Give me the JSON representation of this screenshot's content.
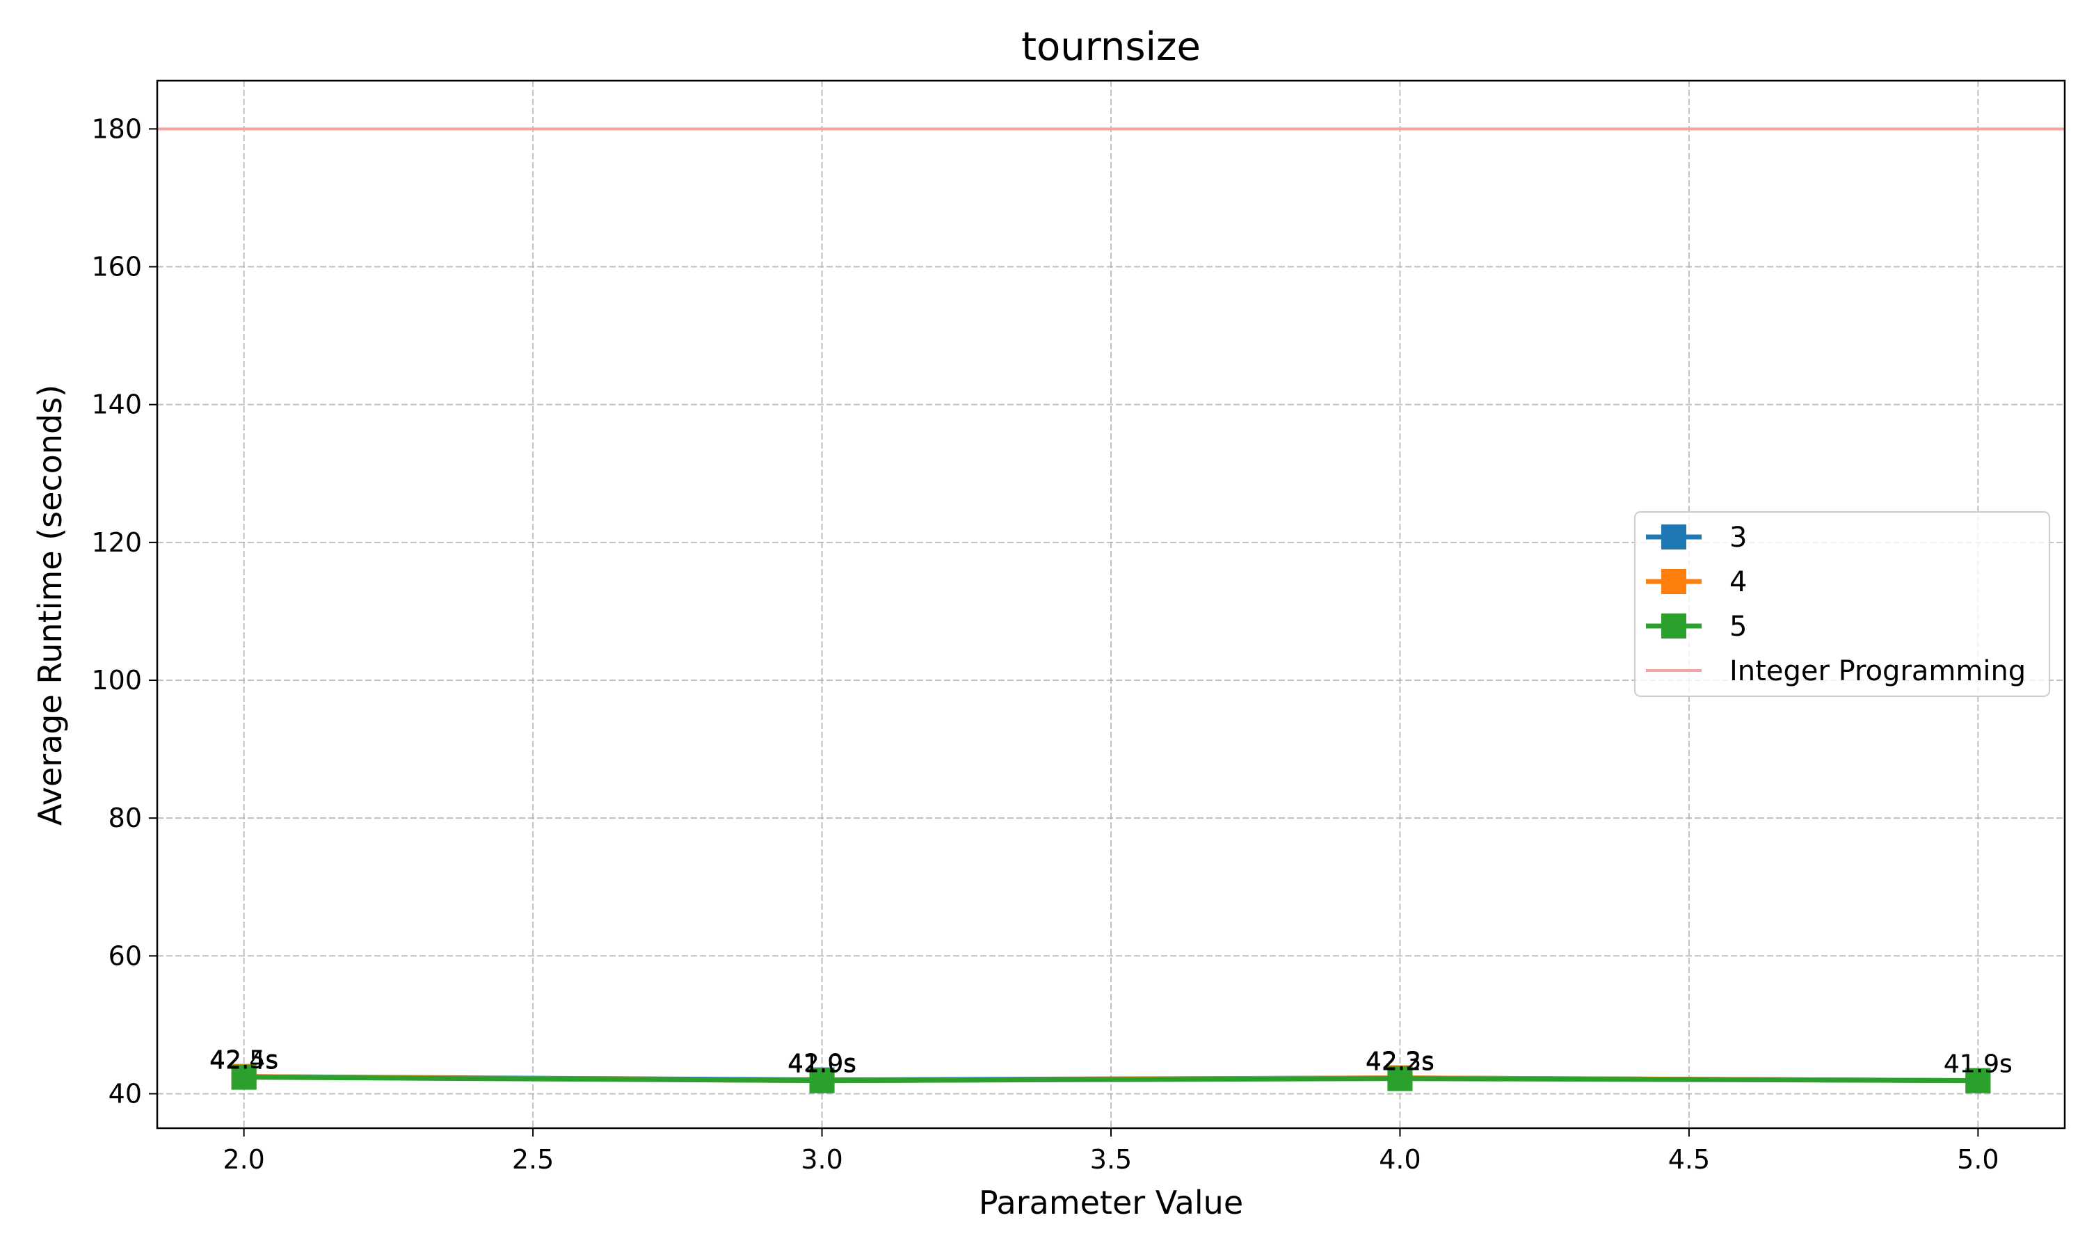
{
  "chart_data": {
    "type": "line",
    "title": "tournsize",
    "xlabel": "Parameter Value",
    "ylabel": "Average Runtime (seconds)",
    "xlim": [
      1.85,
      5.15
    ],
    "ylim": [
      35,
      187
    ],
    "xticks": [
      2.0,
      2.5,
      3.0,
      3.5,
      4.0,
      4.5,
      5.0
    ],
    "xtick_labels": [
      "2.0",
      "2.5",
      "3.0",
      "3.5",
      "4.0",
      "4.5",
      "5.0"
    ],
    "yticks": [
      40,
      60,
      80,
      100,
      120,
      140,
      160,
      180
    ],
    "ytick_labels": [
      "40",
      "60",
      "80",
      "100",
      "120",
      "140",
      "160",
      "180"
    ],
    "grid": true,
    "legend_position": "center-right",
    "x": [
      2.0,
      3.0,
      4.0,
      5.0
    ],
    "series": [
      {
        "name": "3",
        "color": "#1f77b4",
        "marker": "square",
        "values": [
          42.5,
          42.0,
          42.3,
          41.9
        ],
        "labels": [
          "42.5s",
          "42.0s",
          "42.3s",
          "41.9s"
        ]
      },
      {
        "name": "4",
        "color": "#ff7f0e",
        "marker": "square",
        "values": [
          42.5,
          41.9,
          42.3,
          41.9
        ],
        "labels": [
          "42.5s",
          "41.9s",
          "42.3s",
          "41.9s"
        ]
      },
      {
        "name": "5",
        "color": "#2ca02c",
        "marker": "square",
        "values": [
          42.4,
          41.9,
          42.2,
          41.9
        ],
        "labels": [
          "42.4s",
          "41.9s",
          "42.2s",
          "41.9s"
        ]
      }
    ],
    "reference_lines": [
      {
        "name": "Integer Programming",
        "y": 180,
        "color": "#f4a3a3"
      }
    ]
  }
}
